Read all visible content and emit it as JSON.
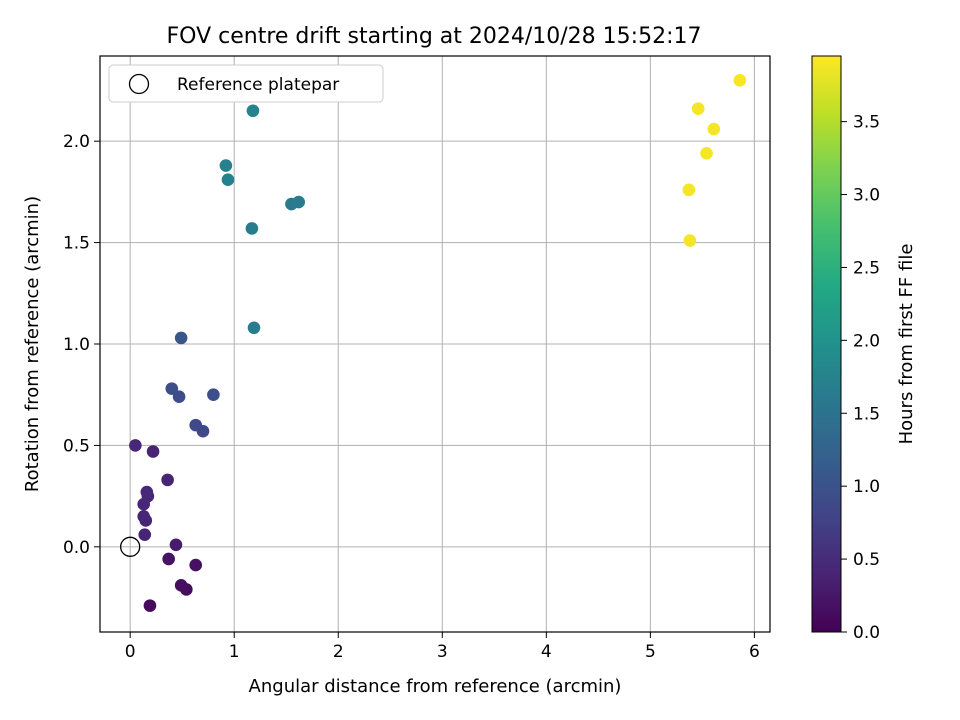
{
  "chart_data": {
    "type": "scatter",
    "title": "FOV centre drift starting at 2024/10/28 15:52:17",
    "xlabel": "Angular distance from reference (arcmin)",
    "ylabel": "Rotation from reference (arcmin)",
    "xlim": [
      -0.29,
      6.15
    ],
    "ylim": [
      -0.42,
      2.42
    ],
    "xticks": [
      "0",
      "1",
      "2",
      "3",
      "4",
      "5",
      "6"
    ],
    "yticks": [
      "0.0",
      "0.5",
      "1.0",
      "1.5",
      "2.0"
    ],
    "grid": true,
    "legend": {
      "position": "top-left",
      "entries": [
        "Reference platepar"
      ]
    },
    "reference_point": {
      "x": 0,
      "y": 0
    },
    "colorbar": {
      "label": "Hours from first FF file",
      "range": [
        0,
        3.95
      ],
      "ticks": [
        "0.0",
        "0.5",
        "1.0",
        "1.5",
        "2.0",
        "2.5",
        "3.0",
        "3.5"
      ],
      "colormap": "viridis"
    },
    "points": [
      {
        "x": 0.19,
        "y": -0.29,
        "c": 0.1
      },
      {
        "x": 0.54,
        "y": -0.21,
        "c": 0.12
      },
      {
        "x": 0.49,
        "y": -0.19,
        "c": 0.15
      },
      {
        "x": 0.63,
        "y": -0.09,
        "c": 0.18
      },
      {
        "x": 0.37,
        "y": -0.06,
        "c": 0.2
      },
      {
        "x": 0.44,
        "y": 0.01,
        "c": 0.3
      },
      {
        "x": 0.14,
        "y": 0.06,
        "c": 0.4
      },
      {
        "x": 0.15,
        "y": 0.13,
        "c": 0.42
      },
      {
        "x": 0.13,
        "y": 0.15,
        "c": 0.42
      },
      {
        "x": 0.13,
        "y": 0.21,
        "c": 0.45
      },
      {
        "x": 0.17,
        "y": 0.25,
        "c": 0.45
      },
      {
        "x": 0.16,
        "y": 0.27,
        "c": 0.45
      },
      {
        "x": 0.36,
        "y": 0.33,
        "c": 0.4
      },
      {
        "x": 0.22,
        "y": 0.47,
        "c": 0.4
      },
      {
        "x": 0.05,
        "y": 0.5,
        "c": 0.45
      },
      {
        "x": 0.7,
        "y": 0.57,
        "c": 0.85
      },
      {
        "x": 0.63,
        "y": 0.6,
        "c": 0.85
      },
      {
        "x": 0.47,
        "y": 0.74,
        "c": 0.9
      },
      {
        "x": 0.8,
        "y": 0.75,
        "c": 0.95
      },
      {
        "x": 0.4,
        "y": 0.78,
        "c": 0.95
      },
      {
        "x": 0.49,
        "y": 1.03,
        "c": 1.05
      },
      {
        "x": 1.19,
        "y": 1.08,
        "c": 1.65
      },
      {
        "x": 1.17,
        "y": 1.57,
        "c": 1.65
      },
      {
        "x": 1.55,
        "y": 1.69,
        "c": 1.6
      },
      {
        "x": 1.62,
        "y": 1.7,
        "c": 1.65
      },
      {
        "x": 0.94,
        "y": 1.81,
        "c": 1.7
      },
      {
        "x": 0.92,
        "y": 1.88,
        "c": 1.7
      },
      {
        "x": 1.18,
        "y": 2.15,
        "c": 1.75
      },
      {
        "x": 5.38,
        "y": 1.51,
        "c": 3.9
      },
      {
        "x": 5.37,
        "y": 1.76,
        "c": 3.9
      },
      {
        "x": 5.54,
        "y": 1.94,
        "c": 3.9
      },
      {
        "x": 5.61,
        "y": 2.06,
        "c": 3.9
      },
      {
        "x": 5.46,
        "y": 2.16,
        "c": 3.9
      },
      {
        "x": 5.86,
        "y": 2.3,
        "c": 3.92
      }
    ]
  }
}
